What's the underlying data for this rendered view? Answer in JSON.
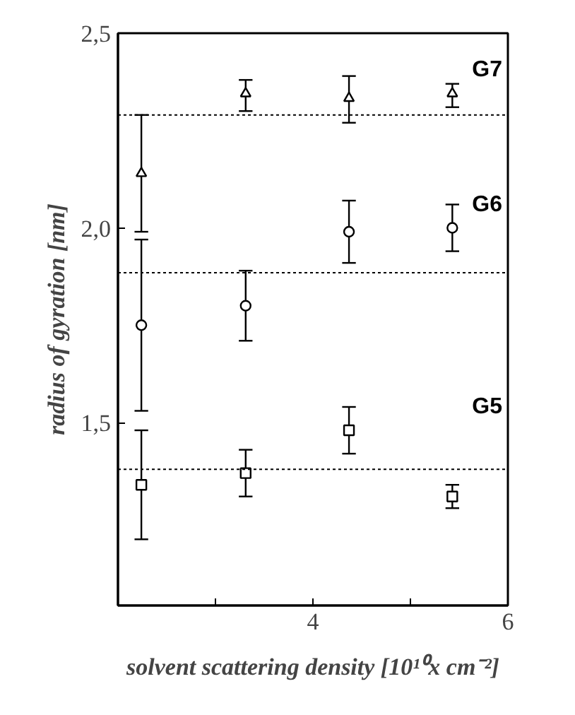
{
  "chart_data": {
    "type": "scatter",
    "xlabel": "solvent scattering density [10¹⁰x cm⁻²]",
    "ylabel": "radius of gyration [nm]",
    "xlim": [
      2,
      6
    ],
    "ylim": [
      1.03,
      2.5
    ],
    "xticks": [
      {
        "value": 3,
        "label": null
      },
      4,
      {
        "value": 5,
        "label": null
      },
      6
    ],
    "yticks": [
      {
        "value": 1.5,
        "label": "1,5"
      },
      {
        "value": 2.0,
        "label": "2,0"
      },
      {
        "value": 2.5,
        "label": "2,5"
      }
    ],
    "x": [
      2.24,
      3.31,
      4.37,
      5.43
    ],
    "series": [
      {
        "name": "G7",
        "color": "#000000",
        "marker": "triangle",
        "values": [
          2.14,
          2.345,
          2.333,
          2.345
        ],
        "errors": [
          [
            1.99,
            2.29
          ],
          [
            2.3,
            2.38
          ],
          [
            2.27,
            2.39
          ],
          [
            2.31,
            2.37
          ]
        ]
      },
      {
        "name": "G6",
        "color": "#000000",
        "marker": "circle",
        "values": [
          1.75,
          1.8,
          1.99,
          2.0
        ],
        "errors": [
          [
            1.53,
            1.97
          ],
          [
            1.71,
            1.89
          ],
          [
            1.91,
            2.07
          ],
          [
            1.94,
            2.06
          ]
        ]
      },
      {
        "name": "G5",
        "color": "#000000",
        "marker": "square",
        "values": [
          1.34,
          1.37,
          1.48,
          1.31
        ],
        "errors": [
          [
            1.2,
            1.48
          ],
          [
            1.31,
            1.43
          ],
          [
            1.42,
            1.54
          ],
          [
            1.28,
            1.34
          ]
        ]
      }
    ],
    "ref_lines": [
      {
        "axis": "y",
        "value": 2.29,
        "line_style": "dotted"
      },
      {
        "axis": "y",
        "value": 1.885,
        "line_style": "dotted"
      },
      {
        "axis": "y",
        "value": 1.38,
        "line_style": "dotted"
      }
    ],
    "grid": false
  }
}
